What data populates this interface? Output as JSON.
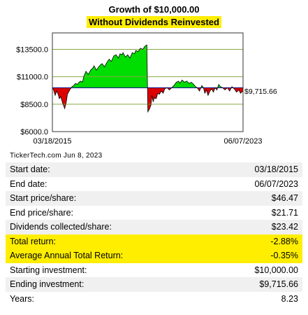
{
  "chart_data": {
    "type": "area",
    "title": "Growth of $10,000.00",
    "subtitle": "Without Dividends Reinvested",
    "baseline": 10000,
    "ylim": [
      6000,
      15000
    ],
    "yticks": [
      6000,
      8500,
      11000,
      13500
    ],
    "ytick_labels": [
      "$6000.0",
      "$8500.0",
      "$11000.0",
      "$13500.0"
    ],
    "xlim": [
      0,
      8.23
    ],
    "x_labels": [
      "03/18/2015",
      "06/07/2023"
    ],
    "end_label": "$9,715.66",
    "grid": true,
    "colors": {
      "above": "#00dd00",
      "below": "#dd0000",
      "line": "#000000",
      "grid": "#88aa44"
    },
    "x": [
      0.0,
      0.05,
      0.12,
      0.18,
      0.25,
      0.3,
      0.35,
      0.4,
      0.44,
      0.48,
      0.53,
      0.6,
      0.65,
      0.7,
      0.78,
      0.85,
      0.92,
      1.0,
      1.08,
      1.15,
      1.22,
      1.3,
      1.35,
      1.45,
      1.55,
      1.65,
      1.75,
      1.8,
      1.9,
      2.0,
      2.08,
      2.15,
      2.25,
      2.35,
      2.45,
      2.55,
      2.65,
      2.75,
      2.85,
      2.92,
      3.0,
      3.05,
      3.15,
      3.25,
      3.35,
      3.45,
      3.55,
      3.6,
      3.7,
      3.8,
      3.9,
      4.0,
      4.08,
      4.12,
      4.2,
      4.25,
      4.3,
      4.35,
      4.4,
      4.48,
      4.55,
      4.62,
      4.7,
      4.78,
      4.85,
      4.95,
      5.05,
      5.15,
      5.25,
      5.35,
      5.45,
      5.5,
      5.6,
      5.7,
      5.8,
      5.9,
      6.0,
      6.1,
      6.18,
      6.25,
      6.35,
      6.45,
      6.52,
      6.58,
      6.65,
      6.72,
      6.8,
      6.88,
      6.95,
      7.02,
      7.1,
      7.18,
      7.25,
      7.35,
      7.45,
      7.55,
      7.65,
      7.75,
      7.85,
      7.95,
      8.05,
      8.12,
      8.23
    ],
    "values": [
      10000,
      9800,
      9300,
      9700,
      9400,
      9000,
      9200,
      8900,
      8600,
      8400,
      8100,
      8700,
      9400,
      9600,
      9900,
      10100,
      10200,
      10400,
      10300,
      10500,
      10600,
      10500,
      11000,
      11500,
      11200,
      11600,
      11800,
      12000,
      11600,
      11900,
      12100,
      12200,
      11900,
      12300,
      12600,
      12400,
      12900,
      13000,
      12700,
      13100,
      13000,
      13200,
      12800,
      13000,
      12700,
      13200,
      13100,
      13400,
      13300,
      13600,
      13500,
      13800,
      13900,
      7800,
      8100,
      8400,
      9300,
      8700,
      9100,
      9000,
      9500,
      9400,
      9700,
      9500,
      9900,
      10000,
      9800,
      10000,
      10200,
      10500,
      10600,
      10400,
      10700,
      10500,
      10600,
      10400,
      10500,
      10300,
      10100,
      10000,
      9700,
      10200,
      10000,
      9500,
      9800,
      9300,
      9700,
      9900,
      9600,
      10000,
      9800,
      10300,
      10100,
      10000,
      9800,
      10000,
      9700,
      10100,
      9900,
      9600,
      9800,
      9500,
      9715.66
    ]
  },
  "credit": "TickerTech.com  Jun 8, 2023",
  "stats": [
    {
      "label": "Start date:",
      "value": "03/18/2015",
      "hl": false
    },
    {
      "label": "End date:",
      "value": "06/07/2023",
      "hl": false
    },
    {
      "label": "Start price/share:",
      "value": "$46.47",
      "hl": false
    },
    {
      "label": "End price/share:",
      "value": "$21.71",
      "hl": false
    },
    {
      "label": "Dividends collected/share:",
      "value": "$23.42",
      "hl": false
    },
    {
      "label": "Total return:",
      "value": "-2.88%",
      "hl": true
    },
    {
      "label": "Average Annual Total Return:",
      "value": "-0.35%",
      "hl": true
    },
    {
      "label": "Starting investment:",
      "value": "$10,000.00",
      "hl": false
    },
    {
      "label": "Ending investment:",
      "value": "$9,715.66",
      "hl": false
    },
    {
      "label": "Years:",
      "value": "8.23",
      "hl": false
    }
  ]
}
